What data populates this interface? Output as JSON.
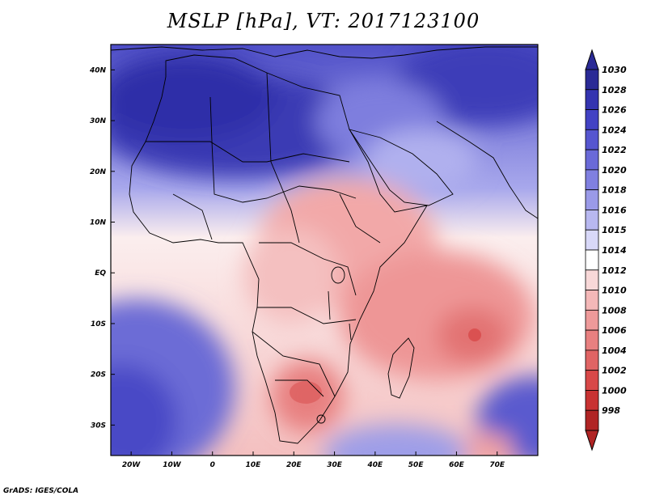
{
  "title": "MSLP [hPa], VT: 2017123100",
  "credit": "GrADS: IGES/COLA",
  "map": {
    "lon_range": [
      -25,
      80
    ],
    "lat_range": [
      -36,
      45
    ],
    "lon_labels": [
      "20W",
      "10W",
      "0",
      "10E",
      "20E",
      "30E",
      "40E",
      "50E",
      "60E",
      "70E"
    ],
    "lat_labels": [
      "40N",
      "30N",
      "20N",
      "10N",
      "EQ",
      "10S",
      "20S",
      "30S"
    ]
  },
  "colorbar": {
    "levels": [
      "1030",
      "1028",
      "1026",
      "1024",
      "1022",
      "1020",
      "1018",
      "1016",
      "1015",
      "1014",
      "1012",
      "1010",
      "1008",
      "1006",
      "1004",
      "1002",
      "1000",
      "998"
    ],
    "colors": [
      "#2a2a96",
      "#3434b0",
      "#4242c4",
      "#5656d0",
      "#6a6ad8",
      "#8080e0",
      "#9a9ae8",
      "#b8b8f0",
      "#d8d8f8",
      "#ffffff",
      "#f8d8d8",
      "#f4b8b8",
      "#ee9a9a",
      "#e88080",
      "#e06464",
      "#d84848",
      "#c83232",
      "#b02424"
    ]
  },
  "colors": {
    "high": "#3434b0",
    "mid_high": "#8c8ce4",
    "neutral": "#fff4f4",
    "low": "#f0a0a0",
    "very_low": "#e06464"
  }
}
